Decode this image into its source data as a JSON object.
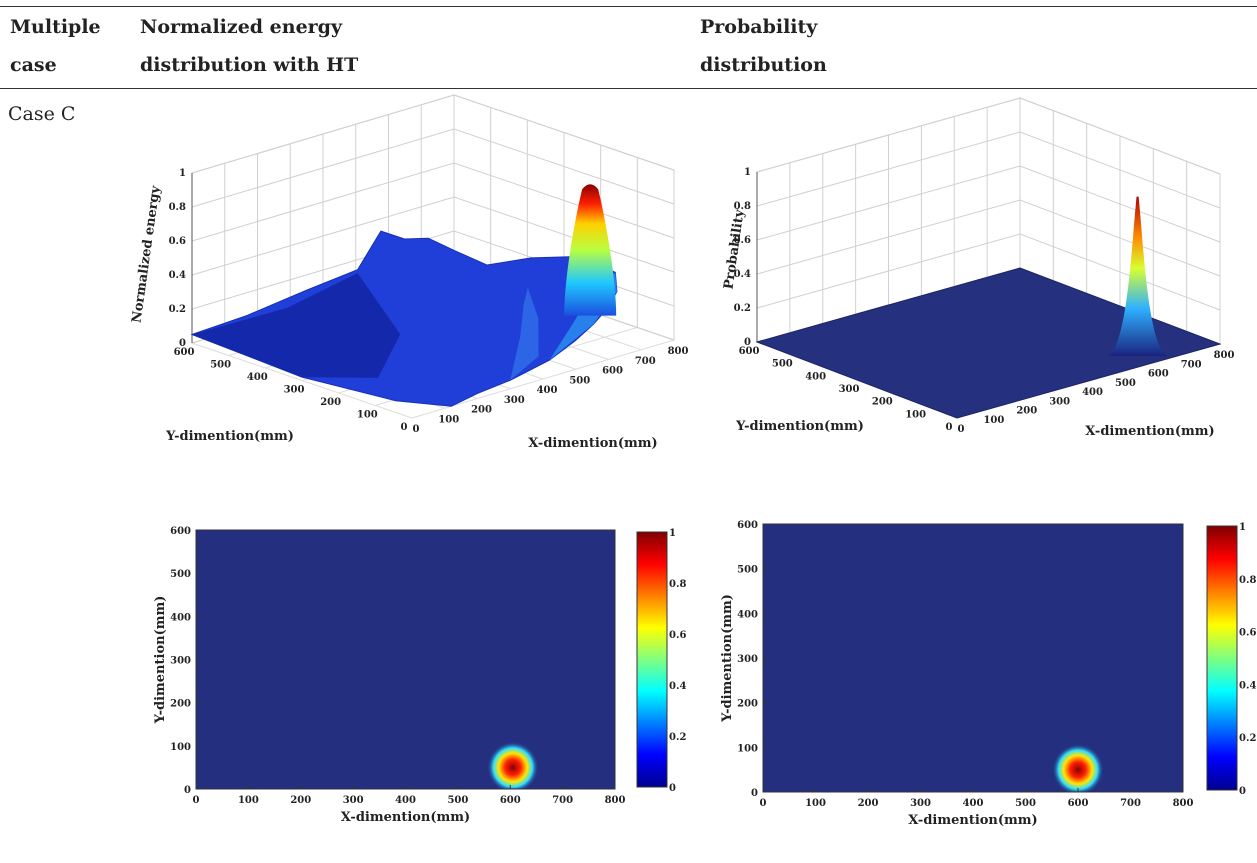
{
  "table": {
    "col1_header": [
      "Multiple",
      "case"
    ],
    "col2_header": [
      "Normalized energy",
      "distribution with HT"
    ],
    "col3_header": [
      "Probability",
      "distribution"
    ],
    "row_label": "Case C"
  },
  "colors": {
    "surface_low": "#1a2a8c",
    "peak": "#8b0000",
    "rule": "#333333"
  },
  "chart_data": [
    {
      "type": "surface3d",
      "title": "",
      "xlabel": "X-dimention(mm)",
      "ylabel": "Y-dimention(mm)",
      "zlabel": "Normalized energy",
      "xlim": [
        0,
        800
      ],
      "ylim": [
        0,
        600
      ],
      "zlim": [
        0,
        1
      ],
      "x_ticks": [
        "0",
        "100",
        "200",
        "300",
        "400",
        "500",
        "600",
        "700",
        "800"
      ],
      "y_ticks": [
        "0",
        "100",
        "200",
        "300",
        "400",
        "500",
        "600"
      ],
      "z_ticks": [
        "0",
        "0.2",
        "0.4",
        "0.6",
        "0.8",
        "1"
      ],
      "peak": {
        "x": 600,
        "y": 50,
        "z": 1.0
      },
      "grid": true
    },
    {
      "type": "surface3d",
      "title": "",
      "xlabel": "X-dimention(mm)",
      "ylabel": "Y-dimention(mm)",
      "zlabel": "Probability",
      "xlim": [
        0,
        800
      ],
      "ylim": [
        0,
        600
      ],
      "zlim": [
        0,
        1
      ],
      "x_ticks": [
        "0",
        "100",
        "200",
        "300",
        "400",
        "500",
        "600",
        "700",
        "800"
      ],
      "y_ticks": [
        "0",
        "100",
        "200",
        "300",
        "400",
        "500",
        "600"
      ],
      "z_ticks": [
        "0",
        "0.2",
        "0.4",
        "0.6",
        "0.8",
        "1"
      ],
      "peak": {
        "x": 600,
        "y": 50,
        "z": 0.95
      },
      "grid": true
    },
    {
      "type": "heatmap",
      "title": "",
      "xlabel": "X-dimention(mm)",
      "ylabel": "Y-dimention(mm)",
      "xlim": [
        0,
        800
      ],
      "ylim": [
        0,
        600
      ],
      "x_ticks": [
        "0",
        "100",
        "200",
        "300",
        "400",
        "500",
        "600",
        "700",
        "800"
      ],
      "y_ticks": [
        "0",
        "100",
        "200",
        "300",
        "400",
        "500",
        "600"
      ],
      "colorbar_ticks": [
        "1",
        "0.8",
        "0.6",
        "0.4",
        "0.2",
        "0"
      ],
      "hotspot": {
        "x": 605,
        "y": 50
      }
    },
    {
      "type": "heatmap",
      "title": "",
      "xlabel": "X-dimention(mm)",
      "ylabel": "Y-dimention(mm)",
      "xlim": [
        0,
        800
      ],
      "ylim": [
        0,
        600
      ],
      "x_ticks": [
        "0",
        "100",
        "200",
        "300",
        "400",
        "500",
        "600",
        "700",
        "800"
      ],
      "y_ticks": [
        "0",
        "100",
        "200",
        "300",
        "400",
        "500",
        "600"
      ],
      "colorbar_ticks": [
        "1",
        "0.8",
        "0.6",
        "0.4",
        "0.2",
        "0"
      ],
      "hotspot": {
        "x": 600,
        "y": 50
      }
    }
  ]
}
